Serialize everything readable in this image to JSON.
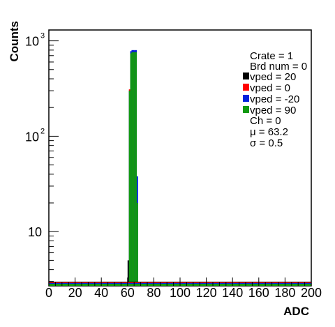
{
  "chart_data": {
    "type": "bar",
    "xlabel": "ADC",
    "ylabel": "Counts",
    "x_range": [
      0,
      200
    ],
    "y_scale": "log",
    "y_range": [
      2.7,
      1300
    ],
    "x_ticks": [
      {
        "value": 0,
        "label": "0"
      },
      {
        "value": 20,
        "label": "20"
      },
      {
        "value": 40,
        "label": "40"
      },
      {
        "value": 60,
        "label": "60"
      },
      {
        "value": 80,
        "label": "80"
      },
      {
        "value": 100,
        "label": "100"
      },
      {
        "value": 120,
        "label": "120"
      },
      {
        "value": 140,
        "label": "140"
      },
      {
        "value": 160,
        "label": "160"
      },
      {
        "value": 180,
        "label": "180"
      },
      {
        "value": 200,
        "label": "200"
      }
    ],
    "y_major_ticks": [
      {
        "value": 10,
        "base": "10",
        "exp": ""
      },
      {
        "value": 100,
        "base": "10",
        "exp": "2"
      },
      {
        "value": 1000,
        "base": "10",
        "exp": "3"
      }
    ],
    "legend_info": [
      "Crate = 1",
      "Brd num = 0"
    ],
    "legend_stats": [
      "Ch = 0",
      "μ = 63.2",
      "σ = 0.5"
    ],
    "series": [
      {
        "name": "vped = 20",
        "color": "#000000",
        "bins": [
          [
            60,
            5
          ],
          [
            61,
            300
          ],
          [
            62,
            750
          ],
          [
            63,
            780
          ],
          [
            64,
            780
          ],
          [
            65,
            780
          ],
          [
            66,
            780
          ]
        ]
      },
      {
        "name": "vped = 0",
        "color": "#ff0000",
        "bins": [
          [
            61,
            310
          ],
          [
            62,
            760
          ],
          [
            63,
            790
          ],
          [
            64,
            790
          ],
          [
            65,
            790
          ],
          [
            66,
            790
          ]
        ]
      },
      {
        "name": "vped = -20",
        "color": "#0022dd",
        "bins": [
          [
            61,
            300
          ],
          [
            62,
            780
          ],
          [
            63,
            800
          ],
          [
            64,
            800
          ],
          [
            65,
            800
          ],
          [
            66,
            800
          ],
          [
            67,
            38
          ]
        ]
      },
      {
        "name": "vped = 90",
        "color": "#119911",
        "bins": [
          [
            61,
            300
          ],
          [
            62,
            740
          ],
          [
            63,
            760
          ],
          [
            64,
            760
          ],
          [
            65,
            760
          ],
          [
            66,
            760
          ],
          [
            67,
            20
          ]
        ]
      }
    ]
  }
}
